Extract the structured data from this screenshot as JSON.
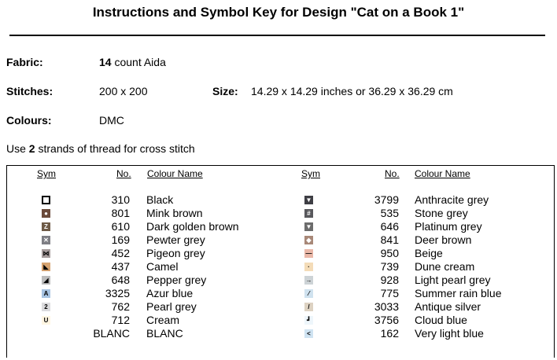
{
  "title": "Instructions and Symbol Key for Design \"Cat on a Book 1\"",
  "fabric": {
    "label": "Fabric:",
    "count": "14",
    "rest": " count Aida"
  },
  "stitches": {
    "label": "Stitches:",
    "value": "200 x 200"
  },
  "size": {
    "label": "Size:",
    "value": "14.29 x 14.29 inches or 36.29 x 36.29 cm"
  },
  "colours": {
    "label": "Colours:",
    "value": "DMC"
  },
  "note": {
    "pre": "Use ",
    "num": "2",
    "post": " strands of thread for cross stitch"
  },
  "headers": {
    "sym": "Sym",
    "no": "No.",
    "name": "Colour Name"
  },
  "left_rows": [
    {
      "no": "310",
      "name": "Black",
      "color": "#ffffff",
      "fg": "#000000",
      "glyph": "",
      "border": "#000000",
      "icon": "empty-square-icon"
    },
    {
      "no": "801",
      "name": "Mink brown",
      "color": "#6a4a3a",
      "fg": "#ffffff",
      "glyph": "●",
      "border": "",
      "icon": "circle-icon"
    },
    {
      "no": "610",
      "name": "Dark golden brown",
      "color": "#6e5a46",
      "fg": "#ffffff",
      "glyph": "Z",
      "border": "",
      "icon": "letter-z-icon"
    },
    {
      "no": "169",
      "name": "Pewter grey",
      "color": "#7e7e84",
      "fg": "#ffffff",
      "glyph": "✕",
      "border": "",
      "icon": "cross-icon"
    },
    {
      "no": "452",
      "name": "Pigeon grey",
      "color": "#a59b9b",
      "fg": "#000000",
      "glyph": "⋈",
      "border": "",
      "icon": "bowtie-icon"
    },
    {
      "no": "437",
      "name": "Camel",
      "color": "#d6a370",
      "fg": "#000000",
      "glyph": "◣",
      "border": "",
      "icon": "triangle-icon"
    },
    {
      "no": "648",
      "name": "Pepper grey",
      "color": "#bcbcbc",
      "fg": "#000000",
      "glyph": "◢",
      "border": "",
      "icon": "wedge-icon"
    },
    {
      "no": "3325",
      "name": "Azur blue",
      "color": "#a8c4e2",
      "fg": "#000000",
      "glyph": "A",
      "border": "",
      "icon": "letter-a-icon"
    },
    {
      "no": "762",
      "name": "Pearl grey",
      "color": "#dcdcde",
      "fg": "#000000",
      "glyph": "2",
      "border": "",
      "icon": "digit-two-icon"
    },
    {
      "no": "712",
      "name": "Cream",
      "color": "#fff6e2",
      "fg": "#000000",
      "glyph": "U",
      "border": "",
      "icon": "letter-u-icon"
    },
    {
      "no": "BLANC",
      "name": "BLANC",
      "color": "#ffffff",
      "fg": "#000000",
      "glyph": "",
      "border": "",
      "icon": "blank-icon"
    }
  ],
  "right_rows": [
    {
      "no": "3799",
      "name": "Anthracite grey",
      "color": "#3e3e44",
      "fg": "#ffffff",
      "glyph": "▼",
      "icon": "heart-icon"
    },
    {
      "no": "535",
      "name": "Stone grey",
      "color": "#58585c",
      "fg": "#ffffff",
      "glyph": "#",
      "icon": "hash-icon"
    },
    {
      "no": "646",
      "name": "Platinum grey",
      "color": "#6c6c6c",
      "fg": "#ffffff",
      "glyph": "▼",
      "icon": "down-triangle-icon"
    },
    {
      "no": "841",
      "name": "Deer brown",
      "color": "#a88878",
      "fg": "#ffffff",
      "glyph": "◆",
      "icon": "diamond-icon"
    },
    {
      "no": "950",
      "name": "Beige",
      "color": "#eab8a8",
      "fg": "#000000",
      "glyph": "—",
      "icon": "dash-icon"
    },
    {
      "no": "739",
      "name": "Dune cream",
      "color": "#f4dcb8",
      "fg": "#000000",
      "glyph": "·",
      "icon": "dot-icon"
    },
    {
      "no": "928",
      "name": "Light pearl grey",
      "color": "#cdd3d6",
      "fg": "#000000",
      "glyph": "→",
      "icon": "arrow-icon"
    },
    {
      "no": "775",
      "name": "Summer rain blue",
      "color": "#d0e2ef",
      "fg": "#000000",
      "glyph": "⁄",
      "icon": "slash-icon"
    },
    {
      "no": "3033",
      "name": "Antique silver",
      "color": "#ddd2c2",
      "fg": "#000000",
      "glyph": "/",
      "icon": "slash-icon"
    },
    {
      "no": "3756",
      "name": "Cloud blue",
      "color": "#eef6fb",
      "fg": "#000000",
      "glyph": "┛",
      "icon": "corner-icon"
    },
    {
      "no": "162",
      "name": "Very light blue",
      "color": "#cfe3f2",
      "fg": "#000000",
      "glyph": "<",
      "icon": "less-than-icon"
    }
  ]
}
